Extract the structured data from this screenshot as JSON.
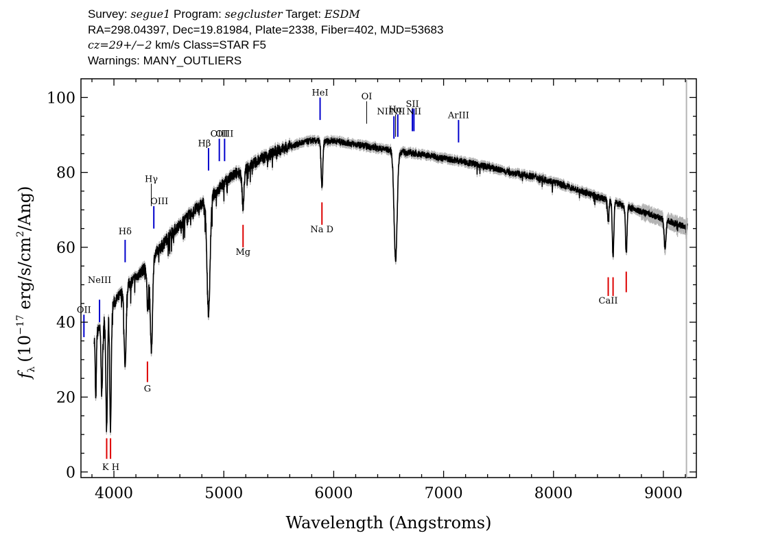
{
  "header": {
    "line1": {
      "survey_label": "Survey:",
      "survey": "segue1",
      "program_label": "Program:",
      "program": "segcluster",
      "target_label": "Target:",
      "target": "ESDM"
    },
    "line2": "RA=298.04397, Dec=19.81984, Plate=2338, Fiber=402, MJD=53683",
    "line3": {
      "cz": "cz=29+/−2",
      "rest": " km/s Class=STAR F5"
    },
    "line4": "Warnings: MANY_OUTLIERS"
  },
  "colors": {
    "flux": "#000000",
    "error": "#b4b4b4",
    "emission_marker": "#0000cc",
    "absorption_marker": "#dd0000",
    "faint_marker": "#000000"
  },
  "chart_data": {
    "type": "line",
    "xlabel": "Wavelength (Angstroms)",
    "ylabel": "f_λ (10^-17 erg/s/cm^2/Ang)",
    "ylabel_parts": {
      "f": "f",
      "sub": "λ",
      "pre": "(10",
      "exp1": "−17",
      "mid": " erg/s/cm",
      "exp2": "2",
      "post": "/Ang)"
    },
    "xlim": [
      3700,
      9300
    ],
    "ylim": [
      -1.5,
      105
    ],
    "xticks": [
      4000,
      5000,
      6000,
      7000,
      8000,
      9000
    ],
    "yticks": [
      0,
      20,
      40,
      60,
      80,
      100
    ],
    "grid": false,
    "continuum_x": [
      3820,
      3900,
      4000,
      4100,
      4200,
      4300,
      4400,
      4500,
      4600,
      4700,
      4800,
      4900,
      5000,
      5100,
      5200,
      5300,
      5400,
      5500,
      5600,
      5700,
      5800,
      5900,
      6000,
      6100,
      6200,
      6300,
      6400,
      6500,
      6600,
      6700,
      6800,
      6900,
      7000,
      7200,
      7400,
      7600,
      7800,
      8000,
      8200,
      8400,
      8600,
      8800,
      9000,
      9100,
      9200
    ],
    "continuum_y": [
      36,
      40,
      45,
      49,
      52,
      55,
      59,
      63,
      66,
      69,
      71.5,
      74,
      77,
      79.5,
      81,
      83,
      84.5,
      86,
      87,
      87.8,
      88.5,
      88.3,
      88.5,
      88,
      87.5,
      87,
      86.5,
      86,
      85.5,
      85.2,
      84.8,
      84.3,
      83.8,
      82.8,
      81.5,
      80,
      79,
      77.5,
      75.5,
      73.5,
      71.5,
      69.5,
      67.5,
      66.5,
      65.5
    ],
    "absorption_lines": [
      {
        "x": 3835,
        "y": 19,
        "w": 5
      },
      {
        "x": 3890,
        "y": 21,
        "w": 7
      },
      {
        "x": 3934,
        "y": 11,
        "w": 7
      },
      {
        "x": 3969,
        "y": 12,
        "w": 7
      },
      {
        "x": 4102,
        "y": 27,
        "w": 9
      },
      {
        "x": 4308,
        "y": 44,
        "w": 8
      },
      {
        "x": 4341,
        "y": 32,
        "w": 10
      },
      {
        "x": 4861,
        "y": 42.5,
        "w": 14
      },
      {
        "x": 5175,
        "y": 71,
        "w": 9
      },
      {
        "x": 5893,
        "y": 76,
        "w": 8
      },
      {
        "x": 6563,
        "y": 56.5,
        "w": 14
      },
      {
        "x": 8498,
        "y": 67,
        "w": 6
      },
      {
        "x": 8542,
        "y": 57.5,
        "w": 7
      },
      {
        "x": 8662,
        "y": 58.5,
        "w": 7
      },
      {
        "x": 9015,
        "y": 60,
        "w": 9
      }
    ],
    "line_markers": [
      {
        "label": "OII",
        "x": 3727,
        "y1": 36,
        "y2": 42,
        "label_y": 42.5,
        "kind": "emission",
        "label_dx": 0
      },
      {
        "label": "NeIII",
        "x": 3869,
        "y1": 40,
        "y2": 46,
        "label_y": 50.5,
        "kind": "emission",
        "label_dx": 0
      },
      {
        "label": "Hδ",
        "x": 4102,
        "y1": 56,
        "y2": 62,
        "label_y": 63.5,
        "kind": "emission",
        "label_dx": 0
      },
      {
        "label": "Hγ",
        "x": 4340,
        "y1": 71,
        "y2": 77,
        "label_y": 77.5,
        "kind": "faint",
        "label_dx": 0
      },
      {
        "label": "OIII",
        "x": 4363,
        "y1": 65,
        "y2": 71,
        "label_y": 71.5,
        "kind": "emission",
        "label_dx": 8
      },
      {
        "label": "Hβ",
        "x": 4861,
        "y1": 80.5,
        "y2": 86.5,
        "label_y": 87,
        "kind": "emission",
        "label_dx": -6
      },
      {
        "label": "OIII",
        "x": 4959,
        "y1": 83,
        "y2": 89,
        "label_y": 89.5,
        "kind": "emission",
        "label_dx": 0
      },
      {
        "label": "OIII",
        "x": 5007,
        "y1": 83,
        "y2": 89,
        "label_y": 89.5,
        "kind": "emission",
        "label_dx": 0
      },
      {
        "label": "Mg",
        "x": 5175,
        "y1": 60,
        "y2": 66,
        "label_y": 58,
        "kind": "absorption",
        "label_dx": 0
      },
      {
        "label": "HeI",
        "x": 5876,
        "y1": 94,
        "y2": 100,
        "label_y": 100.5,
        "kind": "emission",
        "label_dx": 0
      },
      {
        "label": "Na D",
        "x": 5893,
        "y1": 66,
        "y2": 72,
        "label_y": 64,
        "kind": "absorption",
        "label_dx": 0
      },
      {
        "label": "OI",
        "x": 6300,
        "y1": 93,
        "y2": 99,
        "label_y": 99.5,
        "kind": "faint",
        "label_dx": 0
      },
      {
        "label": "NII",
        "x": 6548,
        "y1": 89,
        "y2": 95,
        "label_y": 95.5,
        "kind": "emission",
        "label_dx": -14
      },
      {
        "label": "Hα",
        "x": 6563,
        "y1": 89.5,
        "y2": 95.5,
        "label_y": 96,
        "kind": "faint",
        "label_dx": 0
      },
      {
        "label": "NII",
        "x": 6583,
        "y1": 89.5,
        "y2": 95.5,
        "label_y": 95.5,
        "kind": "emission",
        "label_dx": 0
      },
      {
        "label": "SII",
        "x": 6716,
        "y1": 91,
        "y2": 97,
        "label_y": 97.5,
        "kind": "emission",
        "label_dx": 0
      },
      {
        "label": "NII",
        "x": 6730,
        "y1": 91,
        "y2": 97,
        "label_y": 95.5,
        "kind": "emission",
        "label_dx": 0
      },
      {
        "label": "ArIII",
        "x": 7136,
        "y1": 88,
        "y2": 94,
        "label_y": 94.5,
        "kind": "emission",
        "label_dx": 0
      },
      {
        "label": "K H",
        "x": 3934,
        "y1": 3.5,
        "y2": 9,
        "label_y": 0.5,
        "kind": "absorption",
        "label_dx": 6
      },
      {
        "label": "H",
        "x": 3969,
        "y1": 3.5,
        "y2": 9,
        "label_y": null,
        "kind": "absorption",
        "label_dx": 0
      },
      {
        "label": "G",
        "x": 4305,
        "y1": 24,
        "y2": 29.5,
        "label_y": 21.5,
        "kind": "absorption",
        "label_dx": 0
      },
      {
        "label": "CaII",
        "x": 8498,
        "y1": 47,
        "y2": 52,
        "label_y": 45,
        "kind": "absorption",
        "label_dx": 0
      },
      {
        "label": "CaII",
        "x": 8542,
        "y1": 47,
        "y2": 52,
        "label_y": null,
        "kind": "absorption",
        "label_dx": 0
      },
      {
        "label": "CaII",
        "x": 8662,
        "y1": 48,
        "y2": 53.5,
        "label_y": null,
        "kind": "absorption",
        "label_dx": 0
      }
    ]
  }
}
